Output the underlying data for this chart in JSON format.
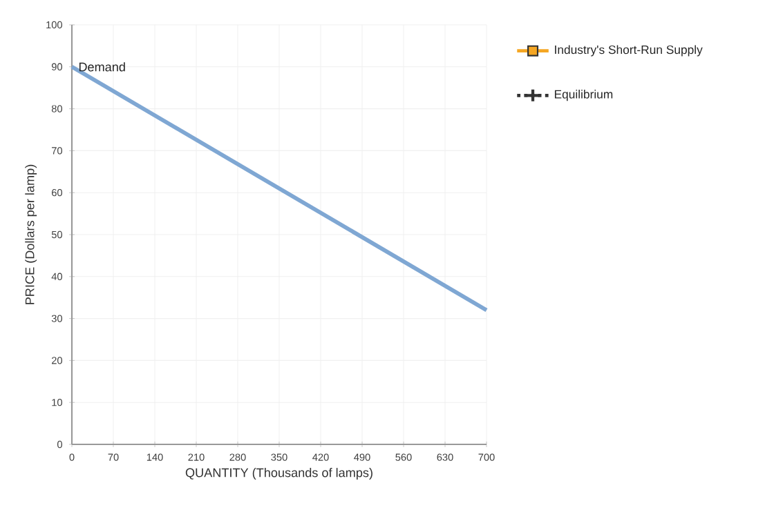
{
  "chart_data": {
    "type": "line",
    "xlabel": "QUANTITY (Thousands of lamps)",
    "ylabel": "PRICE (Dollars per lamp)",
    "x": [
      0,
      700
    ],
    "series": [
      {
        "name": "Demand",
        "color": "#7fa7d3",
        "values": [
          90,
          32
        ],
        "marker": "none",
        "line_style": "solid"
      },
      {
        "name": "Industry's Short-Run Supply",
        "color": "#f5a623",
        "values": [
          null,
          null
        ],
        "marker": "square",
        "line_style": "solid"
      },
      {
        "name": "Equilibrium",
        "color": "#333333",
        "values": [
          null,
          null
        ],
        "marker": "cross",
        "line_style": "dotted"
      }
    ],
    "xlim": [
      0,
      700
    ],
    "xticks": [
      0,
      70,
      140,
      210,
      280,
      350,
      420,
      490,
      560,
      630,
      700
    ],
    "ylim": [
      0,
      100
    ],
    "yticks": [
      0,
      10,
      20,
      30,
      40,
      50,
      60,
      70,
      80,
      90,
      100
    ],
    "grid": true,
    "legend": "right"
  }
}
